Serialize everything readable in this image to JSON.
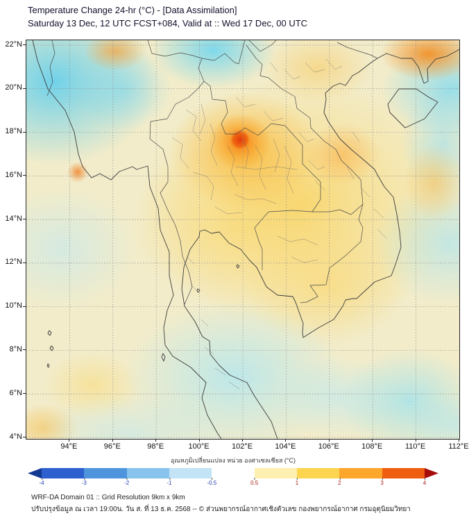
{
  "header": {
    "title": "Temperature Change 24-hr (°C) - [Data Assimilation]",
    "subtitle": "Saturday 13 Dec, 12 UTC FCST+084, Valid at :: Wed 17 Dec, 00 UTC"
  },
  "map": {
    "y_ticks": [
      "22°N",
      "20°N",
      "18°N",
      "16°N",
      "14°N",
      "12°N",
      "10°N",
      "8°N",
      "6°N",
      "4°N"
    ],
    "x_ticks": [
      "94°E",
      "96°E",
      "98°E",
      "100°E",
      "102°E",
      "104°E",
      "106°E",
      "108°E",
      "110°E",
      "112°E"
    ]
  },
  "colorbar": {
    "label": "อุณหภูมิเปลี่ยนแปลง หน่วย องศาเซลเซียส (°C)",
    "tick_labels": [
      "-4",
      "-3",
      "-2",
      "-1",
      "-0.5",
      "0.5",
      "1",
      "2",
      "3",
      "4"
    ],
    "segment_colors": [
      "#123a93",
      "#2d5fce",
      "#4f95dd",
      "#87c3ec",
      "#c3e3f6",
      "#ffffff",
      "#fdf0b0",
      "#fdd44f",
      "#fca62c",
      "#ee5d10",
      "#a50d0a"
    ],
    "negative_label_color": "#1f3db0",
    "positive_label_color": "#a81812"
  },
  "footer": {
    "line1": "WRF-DA Domain 01 :: Grid Resolution 9km x 9km",
    "line2": "ปรับปรุงข้อมูล ณ เวลา 19:00น. วัน ส. ที่ 13 ธ.ค. 2568 -- © ส่วนพยากรณ์อากาศเชิงตัวเลข กองพยากรณ์อากาศ กรมอุตุนิยมวิทยา"
  }
}
